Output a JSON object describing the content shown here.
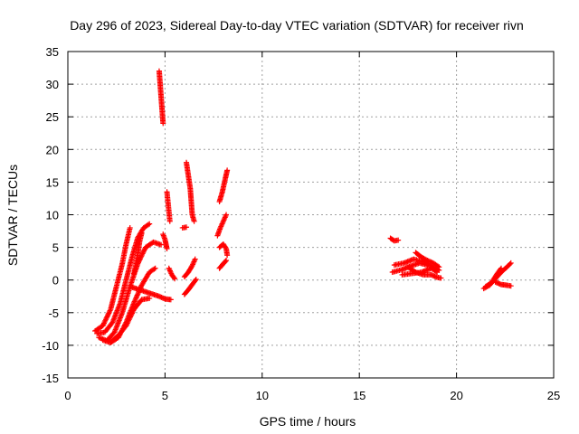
{
  "chart_data": {
    "type": "scatter",
    "title": "Day 296 of 2023, Sidereal Day-to-day VTEC variation (SDTVAR) for receiver rivn",
    "xlabel": "GPS time / hours",
    "ylabel": "SDTVAR / TECUs",
    "xlim": [
      0,
      25
    ],
    "ylim": [
      -15,
      35
    ],
    "xticks": [
      0,
      5,
      10,
      15,
      20,
      25
    ],
    "yticks": [
      -15,
      -10,
      -5,
      0,
      5,
      10,
      15,
      20,
      25,
      30,
      35
    ],
    "xtick_labels": [
      "0",
      "5",
      "10",
      "15",
      "20",
      "25"
    ],
    "ytick_labels": [
      "-15",
      "-10",
      "-5",
      "0",
      "5",
      "10",
      "15",
      "20",
      "25",
      "30",
      "35"
    ],
    "grid": true,
    "marker": "+",
    "color": "#ff0000",
    "tracks": [
      [
        [
          1.4,
          -7.8
        ],
        [
          1.8,
          -7.0
        ],
        [
          2.2,
          -4.5
        ],
        [
          2.5,
          -1.0
        ],
        [
          2.8,
          2.5
        ],
        [
          3.0,
          5.5
        ],
        [
          3.2,
          8.0
        ]
      ],
      [
        [
          1.5,
          -8.2
        ],
        [
          1.9,
          -8.0
        ],
        [
          2.3,
          -6.5
        ],
        [
          2.7,
          -3.5
        ],
        [
          3.0,
          0.0
        ],
        [
          3.3,
          3.5
        ],
        [
          3.6,
          6.5
        ],
        [
          3.9,
          8.0
        ],
        [
          4.2,
          8.6
        ]
      ],
      [
        [
          1.6,
          -8.8
        ],
        [
          2.0,
          -9.3
        ],
        [
          2.4,
          -8.0
        ],
        [
          2.8,
          -5.0
        ],
        [
          3.2,
          -1.0
        ],
        [
          3.6,
          2.5
        ],
        [
          4.0,
          5.0
        ],
        [
          4.4,
          5.8
        ],
        [
          4.8,
          5.4
        ]
      ],
      [
        [
          1.8,
          -9.2
        ],
        [
          2.2,
          -9.6
        ],
        [
          2.6,
          -8.8
        ],
        [
          3.0,
          -6.5
        ],
        [
          3.4,
          -3.5
        ],
        [
          3.8,
          -0.8
        ],
        [
          4.2,
          1.2
        ],
        [
          4.5,
          1.8
        ]
      ],
      [
        [
          2.2,
          -9.5
        ],
        [
          2.6,
          -8.5
        ],
        [
          3.0,
          -7.0
        ],
        [
          3.4,
          -4.5
        ],
        [
          3.8,
          -3.0
        ],
        [
          4.2,
          -2.8
        ]
      ],
      [
        [
          3.2,
          -1.0
        ],
        [
          3.7,
          -1.5
        ],
        [
          4.2,
          -2.0
        ],
        [
          4.7,
          -2.5
        ],
        [
          5.0,
          -2.9
        ],
        [
          5.3,
          -3.0
        ]
      ],
      [
        [
          3.4,
          1.0
        ],
        [
          3.6,
          4.0
        ],
        [
          3.7,
          6.0
        ],
        [
          3.8,
          7.2
        ]
      ],
      [
        [
          4.7,
          32.0
        ],
        [
          4.75,
          30.0
        ],
        [
          4.8,
          28.0
        ],
        [
          4.85,
          26.0
        ],
        [
          4.9,
          24.0
        ]
      ],
      [
        [
          4.9,
          7.0
        ],
        [
          5.0,
          6.2
        ],
        [
          5.05,
          5.5
        ],
        [
          5.1,
          4.8
        ]
      ],
      [
        [
          5.1,
          13.5
        ],
        [
          5.15,
          12.0
        ],
        [
          5.2,
          10.5
        ],
        [
          5.25,
          9.0
        ]
      ],
      [
        [
          5.2,
          1.8
        ],
        [
          5.35,
          0.8
        ],
        [
          5.5,
          0.2
        ]
      ],
      [
        [
          6.1,
          18.0
        ],
        [
          6.2,
          16.0
        ],
        [
          6.3,
          14.0
        ],
        [
          6.35,
          12.0
        ],
        [
          6.4,
          10.0
        ],
        [
          6.5,
          9.0
        ]
      ],
      [
        [
          5.9,
          8.0
        ],
        [
          6.1,
          8.1
        ]
      ],
      [
        [
          6.0,
          0.5
        ],
        [
          6.2,
          1.2
        ],
        [
          6.4,
          2.2
        ],
        [
          6.55,
          3.2
        ]
      ],
      [
        [
          6.0,
          -2.2
        ],
        [
          6.2,
          -1.5
        ],
        [
          6.4,
          -0.7
        ],
        [
          6.6,
          0.1
        ]
      ],
      [
        [
          7.8,
          12.0
        ],
        [
          7.95,
          13.5
        ],
        [
          8.1,
          15.5
        ],
        [
          8.2,
          16.8
        ]
      ],
      [
        [
          7.7,
          6.8
        ],
        [
          7.85,
          8.0
        ],
        [
          8.0,
          9.0
        ],
        [
          8.15,
          10.0
        ]
      ],
      [
        [
          7.8,
          5.0
        ],
        [
          8.0,
          5.5
        ],
        [
          8.15,
          4.8
        ],
        [
          8.2,
          3.8
        ]
      ],
      [
        [
          7.8,
          1.8
        ],
        [
          8.0,
          2.5
        ],
        [
          8.15,
          3.0
        ]
      ],
      [
        [
          16.6,
          6.4
        ],
        [
          16.8,
          6.0
        ],
        [
          17.0,
          6.1
        ]
      ],
      [
        [
          16.7,
          1.2
        ],
        [
          17.2,
          1.6
        ],
        [
          17.7,
          2.2
        ],
        [
          18.1,
          2.6
        ],
        [
          18.5,
          2.3
        ]
      ],
      [
        [
          16.8,
          2.3
        ],
        [
          17.3,
          2.6
        ],
        [
          17.8,
          3.2
        ],
        [
          18.3,
          2.8
        ],
        [
          18.8,
          2.0
        ],
        [
          19.1,
          1.5
        ]
      ],
      [
        [
          17.2,
          0.8
        ],
        [
          17.7,
          1.0
        ],
        [
          18.2,
          1.2
        ],
        [
          18.7,
          1.8
        ],
        [
          19.0,
          1.2
        ]
      ],
      [
        [
          17.5,
          2.0
        ],
        [
          17.9,
          1.2
        ],
        [
          18.3,
          0.8
        ],
        [
          18.7,
          0.8
        ],
        [
          19.0,
          0.4
        ],
        [
          19.2,
          0.3
        ]
      ],
      [
        [
          17.9,
          4.2
        ],
        [
          18.2,
          3.5
        ],
        [
          18.5,
          3.0
        ],
        [
          18.8,
          2.6
        ],
        [
          19.1,
          2.0
        ]
      ],
      [
        [
          21.4,
          -1.3
        ],
        [
          21.7,
          -0.8
        ],
        [
          22.0,
          0.2
        ],
        [
          22.3,
          1.2
        ],
        [
          22.6,
          2.0
        ],
        [
          22.8,
          2.6
        ]
      ],
      [
        [
          21.5,
          -1.0
        ],
        [
          21.8,
          -0.4
        ],
        [
          22.1,
          1.0
        ],
        [
          22.3,
          1.8
        ]
      ],
      [
        [
          22.0,
          -0.3
        ],
        [
          22.3,
          -0.7
        ],
        [
          22.6,
          -0.8
        ],
        [
          22.8,
          -0.9
        ]
      ]
    ]
  }
}
